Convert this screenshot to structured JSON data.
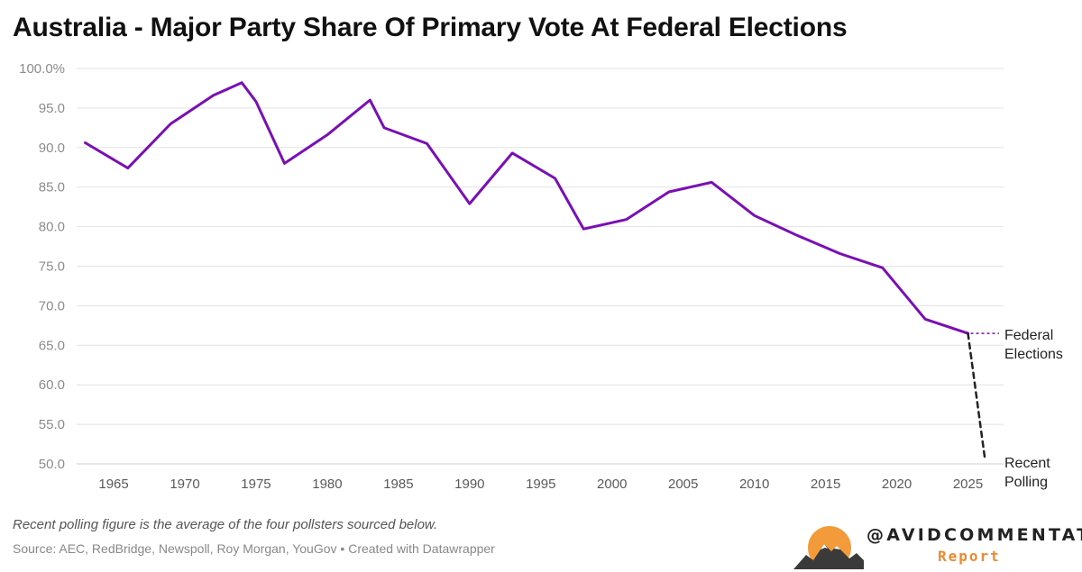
{
  "title": "Australia - Major Party Share Of Primary Vote At Federal Elections",
  "note": "Recent polling figure is the average of the four pollsters sourced below.",
  "source": "Source: AEC, RedBridge, Newspoll, Roy Morgan, YouGov • Created with Datawrapper",
  "brand": {
    "handle": "@AVIDCOMMENTATOR",
    "subtitle": "Report"
  },
  "colors": {
    "elections_line": "#7b0fb6",
    "polling_line": "#222222",
    "grid": "#e2e2e2",
    "logo_sun": "#f39a3a",
    "logo_mountain": "#3a3a3a"
  },
  "chart_data": {
    "type": "line",
    "title": "Australia - Major Party Share Of Primary Vote At Federal Elections",
    "xlabel": "",
    "ylabel": "",
    "xlim": [
      1962.4,
      2027.5
    ],
    "ylim": [
      50,
      100
    ],
    "grid": true,
    "y_ticks": [
      100,
      95,
      90,
      85,
      80,
      75,
      70,
      65,
      60,
      55,
      50
    ],
    "y_tick_labels": [
      "100.0%",
      "95.0",
      "90.0",
      "85.0",
      "80.0",
      "75.0",
      "70.0",
      "65.0",
      "60.0",
      "55.0",
      "50.0"
    ],
    "x_ticks": [
      1965,
      1970,
      1975,
      1980,
      1985,
      1990,
      1995,
      2000,
      2005,
      2010,
      2015,
      2020,
      2025
    ],
    "x_tick_labels": [
      "1965",
      "1970",
      "1975",
      "1980",
      "1985",
      "1990",
      "1995",
      "2000",
      "2005",
      "2010",
      "2015",
      "2020",
      "2025"
    ],
    "series": [
      {
        "name": "Federal Elections",
        "style": "solid",
        "points": [
          [
            1963,
            90.6
          ],
          [
            1966,
            87.4
          ],
          [
            1969,
            93.0
          ],
          [
            1972,
            96.6
          ],
          [
            1974,
            98.2
          ],
          [
            1975,
            95.8
          ],
          [
            1977,
            88.0
          ],
          [
            1980,
            91.6
          ],
          [
            1983,
            96.0
          ],
          [
            1984,
            92.5
          ],
          [
            1987,
            90.5
          ],
          [
            1990,
            82.9
          ],
          [
            1993,
            89.3
          ],
          [
            1996,
            86.1
          ],
          [
            1998,
            79.7
          ],
          [
            2001,
            80.9
          ],
          [
            2004,
            84.4
          ],
          [
            2007,
            85.6
          ],
          [
            2010,
            81.4
          ],
          [
            2013,
            78.9
          ],
          [
            2016,
            76.6
          ],
          [
            2019,
            74.8
          ],
          [
            2022,
            68.3
          ],
          [
            2025,
            66.5
          ]
        ]
      },
      {
        "name": "Recent Polling",
        "style": "dashed",
        "points": [
          [
            2025,
            66.5
          ],
          [
            2026.2,
            50.5
          ]
        ]
      }
    ],
    "labels": {
      "federal_elections": [
        "Federal",
        "Elections"
      ],
      "recent_polling": [
        "Recent",
        "Polling"
      ]
    }
  }
}
